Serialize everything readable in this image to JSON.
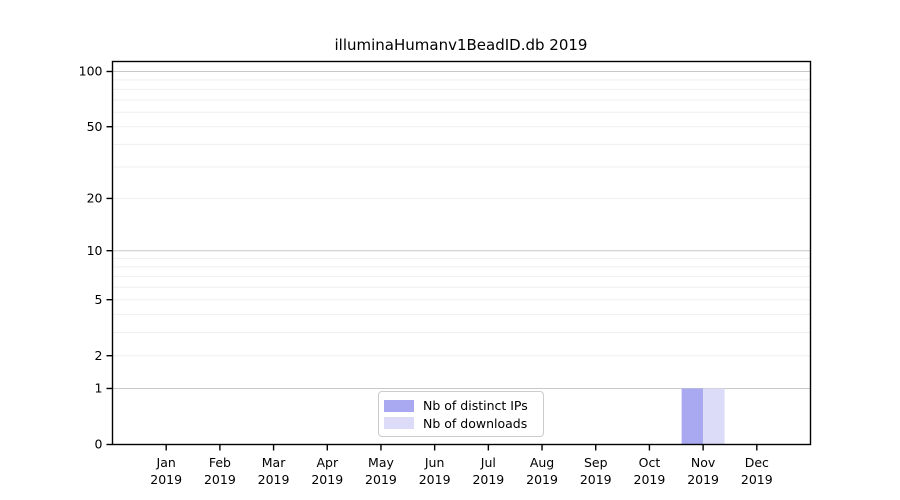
{
  "chart_data": {
    "type": "bar",
    "title": "illuminaHumanv1BeadID.db 2019",
    "xlabel": "",
    "ylabel": "",
    "categories": [
      "Jan",
      "Feb",
      "Mar",
      "Apr",
      "May",
      "Jun",
      "Jul",
      "Aug",
      "Sep",
      "Oct",
      "Nov",
      "Dec"
    ],
    "x_tick_second_line": "2019",
    "series": [
      {
        "name": "Nb of distinct IPs",
        "color": "#a9a9f2",
        "values": [
          0,
          0,
          0,
          0,
          0,
          0,
          0,
          0,
          0,
          0,
          1,
          0
        ]
      },
      {
        "name": "Nb of downloads",
        "color": "#dcdcf8",
        "values": [
          0,
          0,
          0,
          0,
          0,
          0,
          0,
          0,
          0,
          0,
          1,
          0
        ]
      }
    ],
    "yscale": "log1p",
    "yticks": [
      0,
      1,
      2,
      5,
      10,
      20,
      50,
      100
    ],
    "ylim": [
      0,
      113
    ],
    "grid": "on",
    "grid_major_values": [
      1,
      10,
      100
    ],
    "grid_minor_values": [
      2,
      3,
      4,
      5,
      6,
      7,
      8,
      9,
      20,
      30,
      40,
      50,
      60,
      70,
      80,
      90
    ],
    "grid_major_color": "#c8c8c8",
    "grid_minor_color": "#efefef",
    "spine_color": "#000000",
    "legend_position": "bottom-center-inside"
  }
}
